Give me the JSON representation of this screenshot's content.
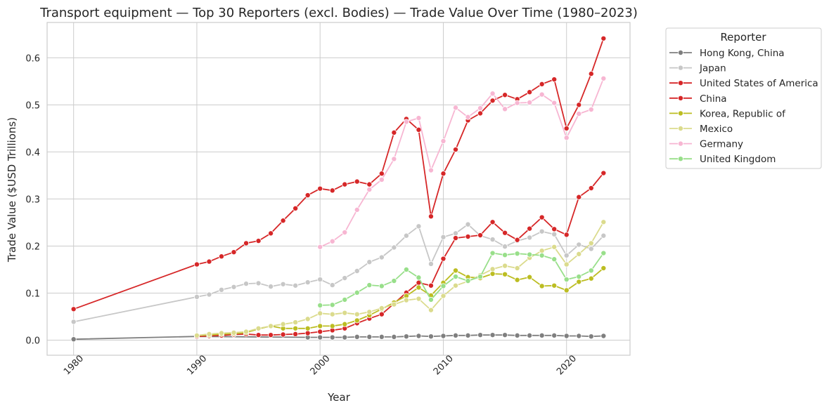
{
  "chart_data": {
    "type": "line",
    "title": "Transport equipment — Top 30 Reporters (excl. Bodies) — Trade Value Over Time (1980–2023)",
    "xlabel": "Year",
    "ylabel": "Trade Value ($USD Trillions)",
    "xlim": [
      1977.85,
      1985.15
    ],
    "ylim": [
      -0.032,
      0.675
    ],
    "x_ticks": [
      1980,
      1990,
      2000,
      2010,
      2020
    ],
    "y_ticks": [
      0.0,
      0.1,
      0.2,
      0.3,
      0.4,
      0.5,
      0.6
    ],
    "y_tick_labels": [
      "0.0",
      "0.1",
      "0.2",
      "0.3",
      "0.4",
      "0.5",
      "0.6"
    ],
    "grid": true,
    "legend": {
      "title": "Reporter",
      "placement": "outside-upper-right"
    },
    "x": [
      1980,
      1990,
      1991,
      1992,
      1993,
      1994,
      1995,
      1996,
      1997,
      1998,
      1999,
      2000,
      2001,
      2002,
      2003,
      2004,
      2005,
      2006,
      2007,
      2008,
      2009,
      2010,
      2011,
      2012,
      2013,
      2014,
      2015,
      2016,
      2017,
      2018,
      2019,
      2020,
      2021,
      2022,
      2023
    ],
    "series": [
      {
        "name": "Hong Kong, China",
        "color": "#7f7f7f",
        "x": [
          1980,
          1990,
          1999,
          2000,
          2001,
          2002,
          2003,
          2004,
          2005,
          2006,
          2007,
          2008,
          2009,
          2010,
          2011,
          2012,
          2013,
          2014,
          2015,
          2016,
          2017,
          2018,
          2019,
          2020,
          2021,
          2022,
          2023
        ],
        "values": [
          0.002,
          0.008,
          0.006,
          0.006,
          0.006,
          0.006,
          0.007,
          0.007,
          0.007,
          0.007,
          0.008,
          0.009,
          0.008,
          0.009,
          0.01,
          0.01,
          0.011,
          0.011,
          0.011,
          0.01,
          0.01,
          0.01,
          0.01,
          0.009,
          0.009,
          0.008,
          0.009
        ]
      },
      {
        "name": "Japan",
        "color": "#c7c7c7",
        "x": [
          1980,
          1990,
          1991,
          1992,
          1993,
          1994,
          1995,
          1996,
          1997,
          1998,
          1999,
          2000,
          2001,
          2002,
          2003,
          2004,
          2005,
          2006,
          2007,
          2008,
          2009,
          2010,
          2011,
          2012,
          2013,
          2014,
          2015,
          2016,
          2017,
          2018,
          2019,
          2020,
          2021,
          2022,
          2023
        ],
        "values": [
          0.039,
          0.092,
          0.097,
          0.107,
          0.113,
          0.12,
          0.121,
          0.114,
          0.119,
          0.116,
          0.123,
          0.129,
          0.117,
          0.132,
          0.147,
          0.166,
          0.176,
          0.197,
          0.222,
          0.242,
          0.162,
          0.219,
          0.227,
          0.246,
          0.222,
          0.214,
          0.199,
          0.211,
          0.218,
          0.231,
          0.225,
          0.18,
          0.203,
          0.194,
          0.222
        ]
      },
      {
        "name": "United States of America",
        "color": "#d62728",
        "x": [
          1980,
          1990,
          1991,
          1992,
          1993,
          1994,
          1995,
          1996,
          1997,
          1998,
          1999,
          2000,
          2001,
          2002,
          2003,
          2004,
          2005,
          2006,
          2007,
          2008,
          2009,
          2010,
          2011,
          2012,
          2013,
          2014,
          2015,
          2016,
          2017,
          2018,
          2019,
          2020,
          2021,
          2022,
          2023
        ],
        "values": [
          0.066,
          0.161,
          0.167,
          0.178,
          0.187,
          0.206,
          0.211,
          0.227,
          0.254,
          0.28,
          0.308,
          0.322,
          0.318,
          0.331,
          0.337,
          0.331,
          0.354,
          0.441,
          0.47,
          0.447,
          0.263,
          0.354,
          0.405,
          0.467,
          0.482,
          0.509,
          0.521,
          0.512,
          0.527,
          0.544,
          0.554,
          0.45,
          0.5,
          0.566,
          0.641
        ]
      },
      {
        "name": "China",
        "color": "#d62728",
        "x": [
          1990,
          1991,
          1992,
          1993,
          1994,
          1995,
          1996,
          1997,
          1998,
          1999,
          2000,
          2001,
          2002,
          2003,
          2004,
          2005,
          2006,
          2007,
          2008,
          2009,
          2010,
          2011,
          2012,
          2013,
          2014,
          2015,
          2016,
          2017,
          2018,
          2019,
          2020,
          2021,
          2022,
          2023
        ],
        "values": [
          0.008,
          0.009,
          0.01,
          0.012,
          0.013,
          0.011,
          0.011,
          0.012,
          0.013,
          0.015,
          0.018,
          0.021,
          0.025,
          0.036,
          0.046,
          0.055,
          0.078,
          0.101,
          0.122,
          0.116,
          0.173,
          0.217,
          0.22,
          0.223,
          0.251,
          0.228,
          0.213,
          0.237,
          0.261,
          0.236,
          0.224,
          0.304,
          0.323,
          0.355
        ]
      },
      {
        "name": "Korea, Republic of",
        "color": "#bcbd22",
        "x": [
          1990,
          1991,
          1992,
          1993,
          1994,
          1995,
          1996,
          1997,
          1998,
          1999,
          2000,
          2001,
          2002,
          2003,
          2004,
          2005,
          2006,
          2007,
          2008,
          2009,
          2010,
          2011,
          2012,
          2013,
          2014,
          2015,
          2016,
          2017,
          2018,
          2019,
          2020,
          2021,
          2022,
          2023
        ],
        "values": [
          0.01,
          0.011,
          0.013,
          0.014,
          0.016,
          0.024,
          0.03,
          0.025,
          0.025,
          0.025,
          0.03,
          0.03,
          0.034,
          0.042,
          0.053,
          0.066,
          0.08,
          0.094,
          0.112,
          0.095,
          0.122,
          0.148,
          0.134,
          0.132,
          0.141,
          0.14,
          0.128,
          0.134,
          0.115,
          0.116,
          0.106,
          0.124,
          0.131,
          0.153
        ]
      },
      {
        "name": "Mexico",
        "color": "#dbdb8d",
        "x": [
          1990,
          1991,
          1992,
          1993,
          1994,
          1995,
          1996,
          1997,
          1998,
          1999,
          2000,
          2001,
          2002,
          2003,
          2004,
          2005,
          2006,
          2007,
          2008,
          2009,
          2010,
          2011,
          2012,
          2013,
          2014,
          2015,
          2016,
          2017,
          2018,
          2019,
          2020,
          2021,
          2022,
          2023
        ],
        "values": [
          0.01,
          0.013,
          0.015,
          0.016,
          0.018,
          0.025,
          0.03,
          0.034,
          0.038,
          0.045,
          0.057,
          0.055,
          0.058,
          0.055,
          0.06,
          0.068,
          0.076,
          0.085,
          0.088,
          0.064,
          0.094,
          0.116,
          0.125,
          0.138,
          0.151,
          0.158,
          0.153,
          0.175,
          0.19,
          0.198,
          0.161,
          0.183,
          0.206,
          0.251
        ]
      },
      {
        "name": "Germany",
        "color": "#f7b6d2",
        "x": [
          2000,
          2001,
          2002,
          2003,
          2004,
          2005,
          2006,
          2007,
          2008,
          2009,
          2010,
          2011,
          2012,
          2013,
          2014,
          2015,
          2016,
          2017,
          2018,
          2019,
          2020,
          2021,
          2022,
          2023
        ],
        "values": [
          0.198,
          0.21,
          0.229,
          0.277,
          0.32,
          0.341,
          0.385,
          0.464,
          0.472,
          0.361,
          0.423,
          0.494,
          0.474,
          0.493,
          0.524,
          0.491,
          0.504,
          0.505,
          0.522,
          0.504,
          0.43,
          0.481,
          0.49,
          0.556
        ]
      },
      {
        "name": "United Kingdom",
        "color": "#98df8a",
        "x": [
          2000,
          2001,
          2002,
          2003,
          2004,
          2005,
          2006,
          2007,
          2008,
          2009,
          2010,
          2011,
          2012,
          2013,
          2014,
          2015,
          2016,
          2017,
          2018,
          2019,
          2020,
          2021,
          2022,
          2023
        ],
        "values": [
          0.074,
          0.075,
          0.086,
          0.101,
          0.117,
          0.115,
          0.126,
          0.15,
          0.133,
          0.086,
          0.115,
          0.135,
          0.126,
          0.135,
          0.185,
          0.181,
          0.184,
          0.182,
          0.18,
          0.172,
          0.129,
          0.135,
          0.148,
          0.185
        ]
      }
    ]
  }
}
